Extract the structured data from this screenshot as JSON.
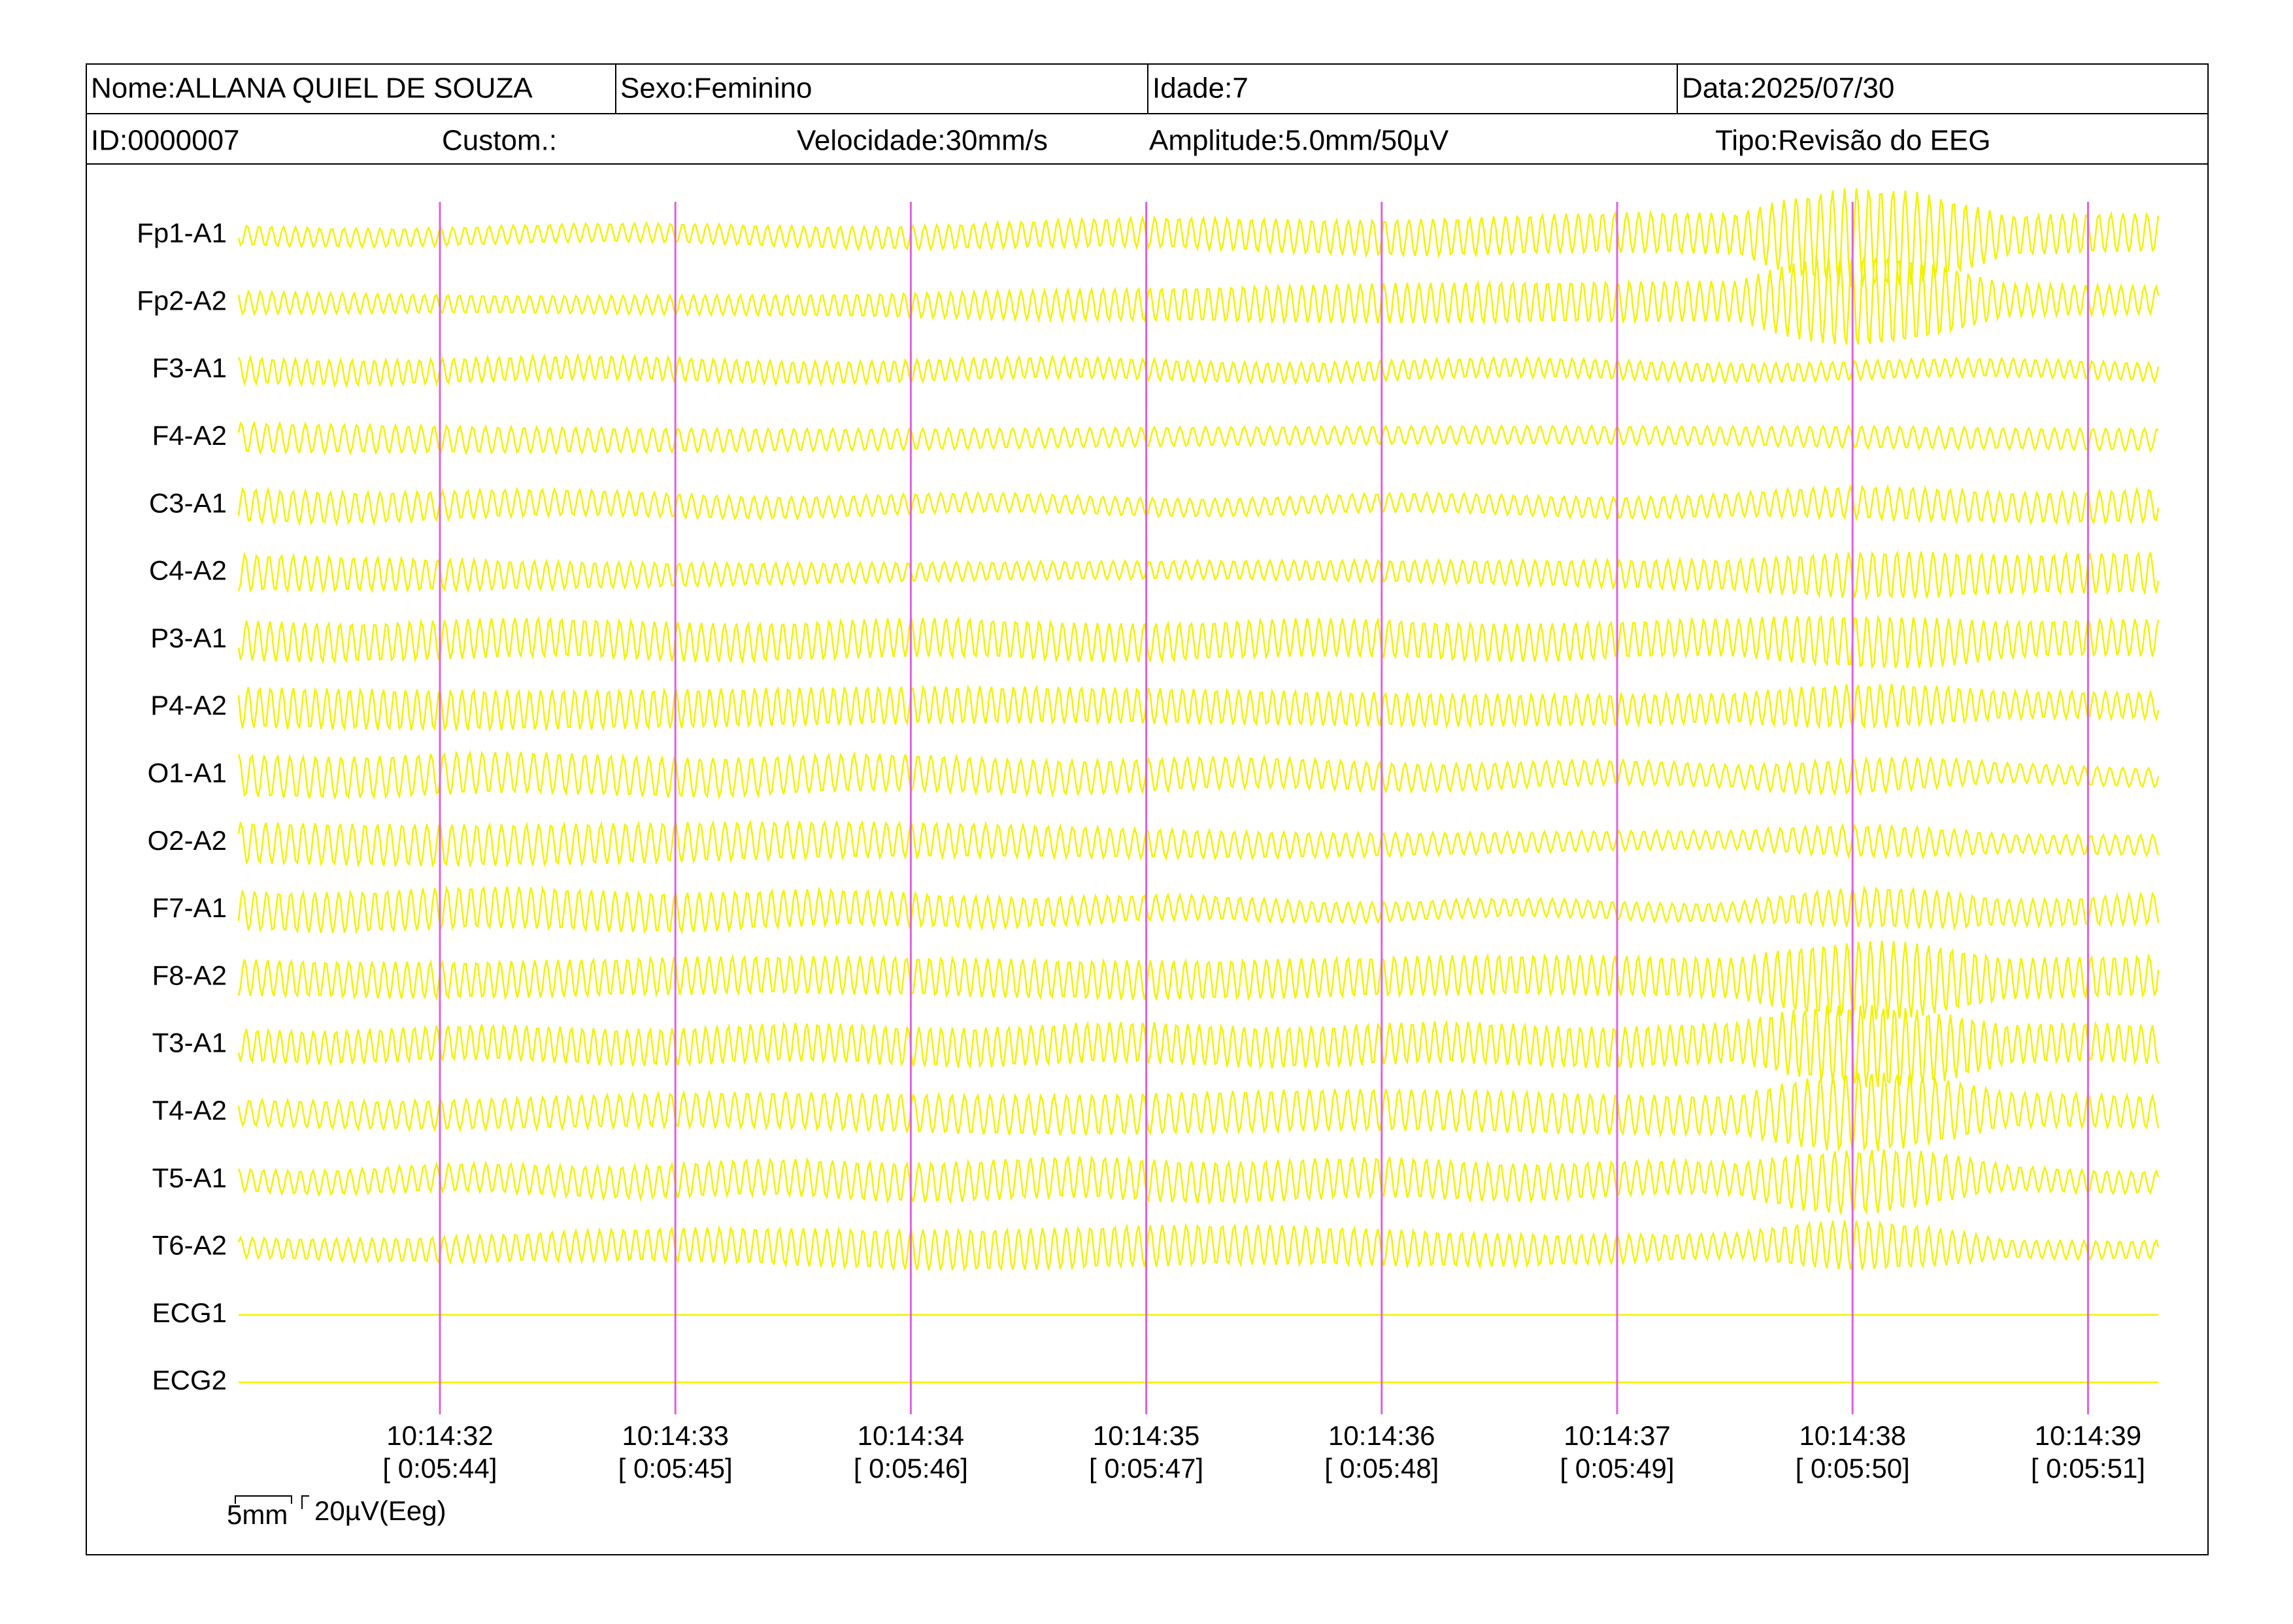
{
  "header": {
    "row1": [
      "Nome:ALLANA QUIEL DE SOUZA",
      "Sexo:Feminino",
      "Idade:7",
      "Data:2025/07/30"
    ],
    "row2": [
      "ID:0000007",
      "Custom.:",
      "Velocidade:30mm/s",
      "Amplitude:5.0mm/50µV",
      "Tipo:Revisão do EEG"
    ]
  },
  "channels": [
    "Fp1-A1",
    "Fp2-A2",
    "F3-A1",
    "F4-A2",
    "C3-A1",
    "C4-A2",
    "P3-A1",
    "P4-A2",
    "O1-A1",
    "O2-A2",
    "F7-A1",
    "F8-A2",
    "T3-A1",
    "T4-A2",
    "T5-A1",
    "T6-A2",
    "ECG1",
    "ECG2"
  ],
  "time_marks": [
    {
      "time": "10:14:32",
      "offset": "[ 0:05:44]"
    },
    {
      "time": "10:14:33",
      "offset": "[ 0:05:45]"
    },
    {
      "time": "10:14:34",
      "offset": "[ 0:05:46]"
    },
    {
      "time": "10:14:35",
      "offset": "[ 0:05:47]"
    },
    {
      "time": "10:14:36",
      "offset": "[ 0:05:48]"
    },
    {
      "time": "10:14:37",
      "offset": "[ 0:05:49]"
    },
    {
      "time": "10:14:38",
      "offset": "[ 0:05:50]"
    },
    {
      "time": "10:14:39",
      "offset": "[ 0:05:51]"
    }
  ],
  "scale": {
    "time": "5mm",
    "amplitude": "20µV(Eeg)"
  }
}
